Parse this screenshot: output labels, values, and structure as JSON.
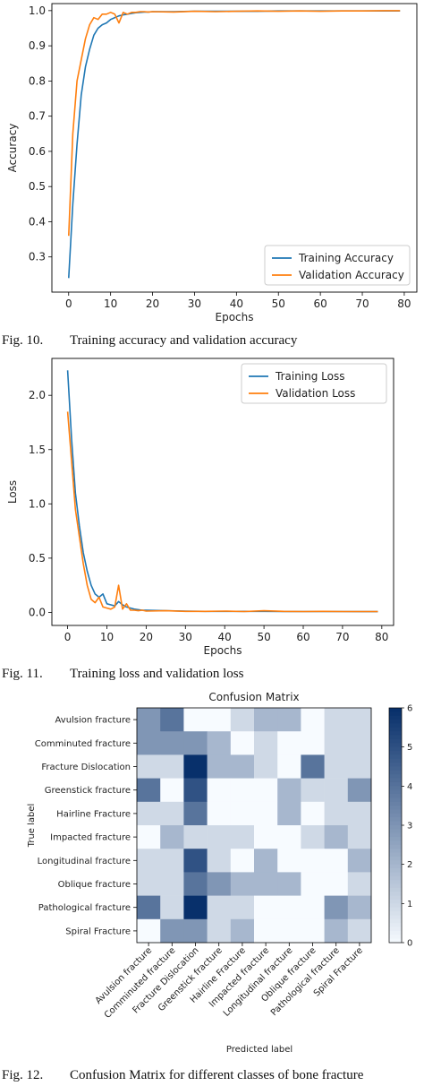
{
  "figures": [
    {
      "number": "Fig. 10.",
      "caption": "Training accuracy and validation accuracy"
    },
    {
      "number": "Fig. 11.",
      "caption": "Training loss and validation loss"
    },
    {
      "number": "Fig. 12.",
      "caption": "Confusion Matrix for different classes of bone fracture"
    }
  ],
  "colors": {
    "training": "#1f77b4",
    "validation": "#ff7f0e"
  },
  "chart_data": [
    {
      "type": "line",
      "title": "",
      "xlabel": "Epochs",
      "ylabel": "Accuracy",
      "xlim": [
        -4,
        83
      ],
      "ylim": [
        0.2,
        1.02
      ],
      "xticks": [
        0,
        10,
        20,
        30,
        40,
        50,
        60,
        70,
        80
      ],
      "yticks": [
        0.3,
        0.4,
        0.5,
        0.6,
        0.7,
        0.8,
        0.9,
        1.0
      ],
      "ytick_labels": [
        "0.3",
        "0.4",
        "0.5",
        "0.6",
        "0.7",
        "0.8",
        "0.9",
        "1.0"
      ],
      "legend": "lower-right",
      "series": [
        {
          "name": "Training Accuracy",
          "color": "#1f77b4",
          "x": [
            0,
            1,
            2,
            3,
            4,
            5,
            6,
            7,
            8,
            9,
            10,
            11,
            12,
            13,
            14,
            15,
            16,
            17,
            18,
            19,
            20,
            25,
            30,
            35,
            40,
            45,
            50,
            55,
            60,
            65,
            70,
            75,
            79
          ],
          "y": [
            0.24,
            0.45,
            0.62,
            0.76,
            0.84,
            0.89,
            0.93,
            0.95,
            0.96,
            0.965,
            0.975,
            0.98,
            0.985,
            0.988,
            0.99,
            0.992,
            0.994,
            0.995,
            0.996,
            0.996,
            0.997,
            0.997,
            0.998,
            0.998,
            0.998,
            0.998,
            0.999,
            0.999,
            0.999,
            0.999,
            0.999,
            0.999,
            0.999
          ]
        },
        {
          "name": "Validation Accuracy",
          "color": "#ff7f0e",
          "x": [
            0,
            1,
            2,
            3,
            4,
            5,
            6,
            7,
            8,
            9,
            10,
            11,
            12,
            13,
            14,
            15,
            16,
            17,
            18,
            19,
            20,
            25,
            30,
            35,
            40,
            45,
            50,
            55,
            60,
            65,
            70,
            75,
            79
          ],
          "y": [
            0.36,
            0.65,
            0.8,
            0.86,
            0.92,
            0.96,
            0.98,
            0.975,
            0.99,
            0.99,
            0.995,
            0.99,
            0.965,
            0.995,
            0.99,
            0.995,
            0.995,
            0.997,
            0.997,
            0.996,
            0.997,
            0.996,
            0.998,
            0.997,
            0.998,
            0.999,
            0.998,
            0.999,
            0.998,
            0.999,
            0.999,
            1.0,
            1.0
          ]
        }
      ]
    },
    {
      "type": "line",
      "title": "",
      "xlabel": "Epochs",
      "ylabel": "Loss",
      "xlim": [
        -4,
        83
      ],
      "ylim": [
        -0.12,
        2.34
      ],
      "xticks": [
        0,
        10,
        20,
        30,
        40,
        50,
        60,
        70,
        80
      ],
      "yticks": [
        0.0,
        0.5,
        1.0,
        1.5,
        2.0
      ],
      "ytick_labels": [
        "0.0",
        "0.5",
        "1.0",
        "1.5",
        "2.0"
      ],
      "legend": "top-right",
      "series": [
        {
          "name": "Training Loss",
          "color": "#1f77b4",
          "x": [
            0,
            1,
            2,
            3,
            4,
            5,
            6,
            7,
            8,
            9,
            10,
            11,
            12,
            13,
            14,
            15,
            16,
            17,
            18,
            19,
            20,
            25,
            30,
            35,
            40,
            45,
            50,
            55,
            60,
            65,
            70,
            75,
            79
          ],
          "y": [
            2.23,
            1.6,
            1.1,
            0.8,
            0.55,
            0.38,
            0.25,
            0.17,
            0.14,
            0.17,
            0.08,
            0.07,
            0.06,
            0.1,
            0.07,
            0.05,
            0.04,
            0.03,
            0.025,
            0.02,
            0.02,
            0.015,
            0.012,
            0.01,
            0.01,
            0.01,
            0.01,
            0.008,
            0.008,
            0.008,
            0.008,
            0.007,
            0.007
          ]
        },
        {
          "name": "Validation Loss",
          "color": "#ff7f0e",
          "x": [
            0,
            1,
            2,
            3,
            4,
            5,
            6,
            7,
            8,
            9,
            10,
            11,
            12,
            13,
            14,
            15,
            16,
            17,
            18,
            19,
            20,
            25,
            30,
            35,
            40,
            45,
            50,
            55,
            60,
            65,
            70,
            75,
            79
          ],
          "y": [
            1.85,
            1.4,
            0.95,
            0.7,
            0.45,
            0.25,
            0.12,
            0.09,
            0.14,
            0.05,
            0.04,
            0.03,
            0.05,
            0.25,
            0.03,
            0.08,
            0.02,
            0.02,
            0.015,
            0.02,
            0.012,
            0.015,
            0.01,
            0.01,
            0.012,
            0.008,
            0.015,
            0.01,
            0.008,
            0.01,
            0.008,
            0.008,
            0.008
          ]
        }
      ]
    },
    {
      "type": "heatmap",
      "title": "Confusion Matrix",
      "xlabel": "Predicted label",
      "ylabel": "True label",
      "labels": [
        "Avulsion fracture",
        "Comminuted fracture",
        "Fracture Dislocation",
        "Greenstick fracture",
        "Hairline Fracture",
        "Impacted fracture",
        "Longitudinal fracture",
        "Oblique fracture",
        "Pathological fracture",
        "Spiral Fracture"
      ],
      "colorbar": {
        "min": 0,
        "max": 6,
        "ticks": [
          0,
          1,
          2,
          3,
          4,
          5,
          6
        ]
      },
      "matrix": [
        [
          3,
          4,
          0,
          0,
          1,
          2,
          2,
          0,
          1,
          1
        ],
        [
          3,
          3,
          3,
          2,
          0,
          1,
          0,
          0,
          1,
          1
        ],
        [
          1,
          1,
          6,
          2,
          2,
          1,
          0,
          4,
          1,
          1
        ],
        [
          4,
          0,
          5,
          0,
          0,
          0,
          2,
          1,
          1,
          3
        ],
        [
          1,
          1,
          4,
          0,
          0,
          0,
          2,
          0,
          1,
          1
        ],
        [
          0,
          2,
          1,
          1,
          1,
          0,
          0,
          1,
          2,
          1
        ],
        [
          1,
          1,
          5,
          1,
          0,
          2,
          0,
          0,
          0,
          2
        ],
        [
          1,
          1,
          4,
          3,
          2,
          2,
          2,
          0,
          0,
          1
        ],
        [
          4,
          1,
          6,
          1,
          1,
          0,
          0,
          0,
          3,
          2
        ],
        [
          0,
          3,
          3,
          1,
          2,
          0,
          0,
          0,
          2,
          1
        ]
      ]
    }
  ]
}
